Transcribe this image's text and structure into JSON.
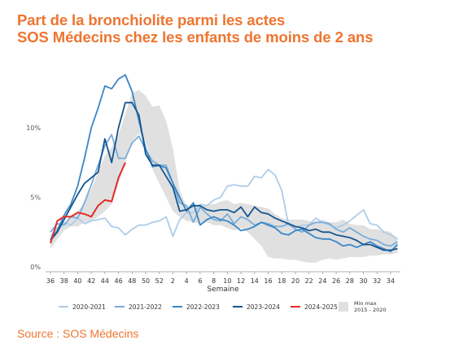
{
  "title_line1": "Part de la bronchiolite parmi les actes",
  "title_line2": "SOS Médecins chez les enfants de moins de 2 ans",
  "source": "Source : SOS Médecins",
  "chart_data": {
    "type": "line",
    "xlabel": "Semaine",
    "ylabel": "",
    "x_ticks": [
      "36",
      "38",
      "40",
      "42",
      "44",
      "46",
      "48",
      "50",
      "52",
      "2",
      "4",
      "6",
      "8",
      "10",
      "12",
      "14",
      "16",
      "18",
      "20",
      "22",
      "24",
      "26",
      "28",
      "30",
      "32",
      "34"
    ],
    "y_ticks": [
      "0%",
      "5%",
      "10%"
    ],
    "ylim": [
      0,
      14.5
    ],
    "grid": false,
    "legend_position": "bottom",
    "band": {
      "name": "Min max\n2015 - 2020",
      "color": "#e0e0e0",
      "min": [
        1.3,
        2.0,
        2.6,
        2.9,
        2.9,
        3.2,
        3.3,
        3.6,
        4.0,
        4.5,
        6.0,
        7.5,
        9.0,
        9.6,
        9.0,
        7.0,
        6.0,
        5.0,
        4.0,
        3.6,
        3.3,
        3.2,
        3.1,
        3.2,
        3.0,
        3.0,
        2.8,
        2.6,
        2.8,
        2.5,
        2.0,
        1.5,
        0.7,
        0.6,
        0.6,
        0.5,
        0.5,
        0.4,
        0.3,
        0.3,
        0.5,
        0.6,
        0.5,
        0.6,
        0.7,
        0.7,
        0.7,
        0.8,
        0.8,
        0.9,
        0.9,
        1.0
      ],
      "max": [
        1.8,
        2.6,
        3.1,
        3.6,
        4.0,
        4.6,
        5.6,
        6.8,
        8.0,
        8.6,
        9.5,
        11.0,
        12.5,
        12.7,
        12.3,
        11.5,
        11.6,
        10.5,
        8.5,
        5.5,
        4.3,
        4.6,
        4.2,
        4.5,
        4.5,
        4.7,
        4.8,
        4.5,
        4.6,
        4.5,
        4.4,
        4.3,
        4.2,
        3.8,
        3.5,
        3.4,
        3.4,
        3.4,
        3.3,
        3.2,
        3.4,
        3.2,
        3.2,
        3.4,
        3.1,
        3.0,
        3.0,
        2.7,
        2.7,
        2.6,
        2.5,
        2.0
      ]
    },
    "series": [
      {
        "name": "2020-2021",
        "color": "#aecde8",
        "values": [
          2.2,
          2.8,
          3.2,
          3.0,
          3.5,
          3.1,
          3.3,
          3.4,
          3.5,
          2.9,
          2.8,
          2.3,
          2.7,
          3.0,
          3.0,
          3.2,
          3.3,
          3.6,
          2.2,
          3.4,
          3.9,
          3.9,
          4.5,
          4.4,
          4.8,
          5.0,
          5.8,
          5.9,
          5.8,
          5.8,
          6.5,
          6.4,
          7.0,
          6.6,
          5.5,
          3.0,
          2.8,
          3.0,
          3.0,
          3.5,
          3.2,
          3.0,
          2.8,
          3.0,
          3.3,
          3.7,
          4.1,
          3.1,
          3.0,
          2.5,
          2.3,
          2.0
        ]
      },
      {
        "name": "2021-2022",
        "color": "#79acd9",
        "values": [
          2.5,
          3.1,
          3.0,
          3.6,
          3.5,
          4.6,
          5.9,
          7.3,
          8.7,
          9.5,
          7.8,
          7.8,
          8.9,
          9.4,
          8.4,
          7.6,
          7.3,
          7.3,
          6.0,
          4.6,
          4.4,
          3.2,
          4.3,
          3.8,
          3.4,
          3.3,
          3.8,
          3.1,
          3.6,
          3.4,
          3.0,
          3.2,
          3.1,
          2.9,
          2.9,
          3.1,
          2.7,
          2.5,
          3.0,
          3.2,
          3.2,
          3.1,
          2.7,
          2.5,
          2.8,
          2.5,
          2.2,
          2.0,
          1.9,
          1.6,
          1.5,
          1.8
        ]
      },
      {
        "name": "2022-2023",
        "color": "#3a86c6",
        "values": [
          2.0,
          2.6,
          3.7,
          4.5,
          5.8,
          7.8,
          10.0,
          11.4,
          13.0,
          12.8,
          13.5,
          13.8,
          12.6,
          10.5,
          8.5,
          7.2,
          7.3,
          7.1,
          6.0,
          5.0,
          4.0,
          4.6,
          3.0,
          3.4,
          3.6,
          3.4,
          3.3,
          3.0,
          2.6,
          2.7,
          2.9,
          3.2,
          3.0,
          2.8,
          2.4,
          2.3,
          2.6,
          2.7,
          2.4,
          2.1,
          2.0,
          2.0,
          1.8,
          1.5,
          1.6,
          1.4,
          1.6,
          1.8,
          1.5,
          1.3,
          1.1,
          1.6
        ]
      },
      {
        "name": "2023-2024",
        "color": "#15558f",
        "values": [
          1.9,
          2.5,
          3.4,
          4.3,
          5.2,
          6.0,
          6.4,
          6.8,
          9.2,
          7.5,
          10.0,
          11.8,
          11.8,
          10.9,
          8.1,
          7.3,
          7.3,
          6.5,
          5.7,
          4.0,
          4.1,
          4.4,
          4.4,
          4.1,
          4.0,
          4.1,
          4.1,
          3.9,
          4.3,
          3.6,
          4.3,
          3.9,
          3.8,
          3.5,
          3.3,
          3.1,
          2.9,
          2.8,
          2.6,
          2.7,
          2.5,
          2.5,
          2.3,
          2.2,
          2.1,
          1.9,
          1.6,
          1.6,
          1.4,
          1.2,
          1.2,
          1.3
        ]
      },
      {
        "name": "2024-2025",
        "color": "#e52b26",
        "values": [
          1.7,
          3.3,
          3.6,
          3.6,
          3.9,
          3.8,
          3.6,
          4.4,
          4.8,
          4.7,
          6.4,
          7.5
        ]
      }
    ]
  }
}
